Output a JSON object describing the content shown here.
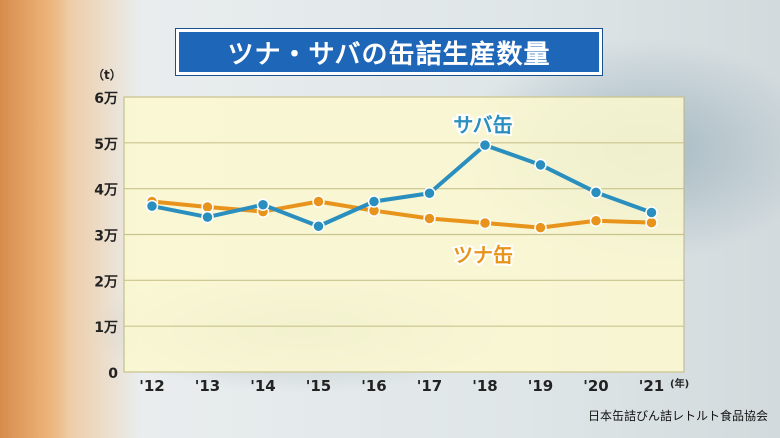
{
  "title": "ツナ・サバの缶詰生産数量",
  "source": "日本缶詰びん詰レトルト食品協会",
  "chart_data": {
    "type": "line",
    "unit_label": "（t）",
    "x_unit_label": "(年)",
    "categories": [
      "'12",
      "'13",
      "'14",
      "'15",
      "'16",
      "'17",
      "'18",
      "'19",
      "'20",
      "'21"
    ],
    "y_tick_labels": [
      "0",
      "1万",
      "2万",
      "3万",
      "4万",
      "5万",
      "6万"
    ],
    "ylim": [
      0,
      60000
    ],
    "grid": true,
    "series": [
      {
        "name": "サバ缶",
        "color": "#2a8fbf",
        "values": [
          36200,
          33800,
          36500,
          31800,
          37200,
          39000,
          49500,
          45200,
          39200,
          34800
        ]
      },
      {
        "name": "ツナ缶",
        "color": "#e8941c",
        "values": [
          37200,
          36000,
          35000,
          37200,
          35200,
          33500,
          32500,
          31500,
          33000,
          32600
        ]
      }
    ],
    "plot_bg": "#fbf8cf"
  }
}
